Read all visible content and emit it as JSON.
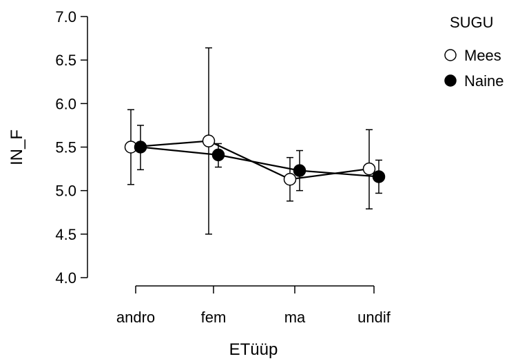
{
  "chart_data": {
    "type": "line",
    "xlabel": "ETüüp",
    "ylabel": "IN_F",
    "categories": [
      "andro",
      "fem",
      "ma",
      "undif"
    ],
    "ylim": [
      4.0,
      7.0
    ],
    "yticks": [
      "4.0",
      "4.5",
      "5.0",
      "5.5",
      "6.0",
      "6.5",
      "7.0"
    ],
    "legend": {
      "title": "SUGU",
      "position": "top-right"
    },
    "series": [
      {
        "name": "Mees",
        "marker": "open-circle",
        "color": "#000000",
        "values": [
          5.5,
          5.57,
          5.13,
          5.25
        ],
        "error_low": [
          5.07,
          4.5,
          4.88,
          4.79
        ],
        "error_high": [
          5.93,
          6.64,
          5.38,
          5.7
        ]
      },
      {
        "name": "Naine",
        "marker": "filled-circle",
        "color": "#000000",
        "values": [
          5.5,
          5.41,
          5.23,
          5.16
        ],
        "error_low": [
          5.24,
          5.27,
          5.0,
          4.97
        ],
        "error_high": [
          5.75,
          5.54,
          5.46,
          5.35
        ]
      }
    ]
  }
}
